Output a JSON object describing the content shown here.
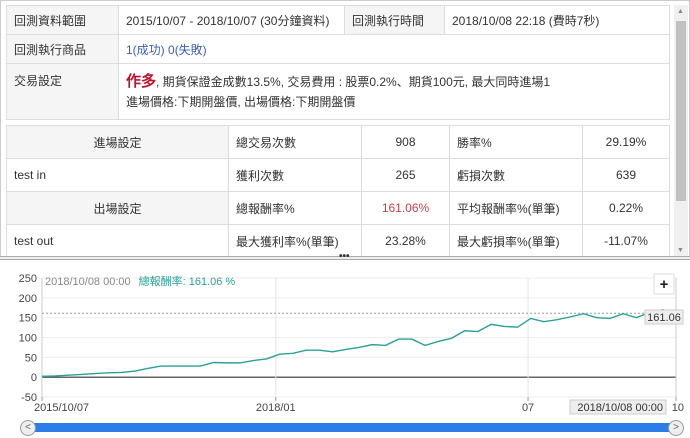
{
  "info": {
    "range_label": "回測資料範圍",
    "range_value": "2015/10/07 - 2018/10/07 (30分鐘資料)",
    "time_label": "回測執行時間",
    "time_value": "2018/10/08 22:18 (費時7秒)",
    "items_label": "回測執行商品",
    "items_success": "1(成功)",
    "items_fail": "0(失敗)",
    "trade_label": "交易設定",
    "trade_direction": "作多",
    "trade_line1": ", 期貨保證金成數13.5%, 交易費用 : 股票0.2%、期貨100元, 最大同時進場1",
    "trade_line2": "進場價格:下期開盤價, 出場價格:下期開盤價"
  },
  "settings": {
    "entry_label": "進場設定",
    "entry_value": "test in",
    "exit_label": "出場設定",
    "exit_value": "test out"
  },
  "stats": [
    {
      "l1": "總交易次數",
      "v1": "908",
      "l2": "勝率%",
      "v2": "29.19%"
    },
    {
      "l1": "獲利次數",
      "v1": "265",
      "l2": "虧損次數",
      "v2": "639"
    },
    {
      "l1": "總報酬率%",
      "v1": "161.06%",
      "l2": "平均報酬率%(單筆)",
      "v2": "0.22%"
    },
    {
      "l1": "最大獲利率%(單筆)",
      "v1": "23.28%",
      "l2": "最大虧損率%(單筆)",
      "v2": "-11.07%"
    }
  ],
  "chart": {
    "tooltip_date": "2018/10/08 00:00",
    "tooltip_series": "總報酬率:",
    "tooltip_value": "161.06 %",
    "last_label": "161.06",
    "crosshair_date": "2018/10/08 00:00",
    "zoom_button": "+",
    "nav_left": "<",
    "nav_right": ">"
  },
  "chart_data": {
    "type": "line",
    "line_color": "#2aa198",
    "ylim": [
      -50,
      250
    ],
    "yticks": [
      250,
      200,
      150,
      100,
      50,
      0,
      -50
    ],
    "xticks": [
      {
        "label": "2015/10/07",
        "index": 0
      },
      {
        "label": "2018/01",
        "index": 17.7
      },
      {
        "label": "07",
        "index": 36.8
      },
      {
        "label": "10",
        "index": 48
      }
    ],
    "values": [
      2,
      3,
      5,
      7,
      9,
      11,
      12,
      15,
      22,
      28,
      28,
      28,
      28,
      37,
      36,
      36,
      42,
      46,
      58,
      60,
      68,
      68,
      64,
      70,
      75,
      82,
      80,
      96,
      96,
      80,
      90,
      98,
      117,
      115,
      133,
      128,
      126,
      148,
      140,
      145,
      152,
      160,
      150,
      148,
      160,
      150,
      163,
      170,
      161.06
    ],
    "reference_value": 161.06
  }
}
